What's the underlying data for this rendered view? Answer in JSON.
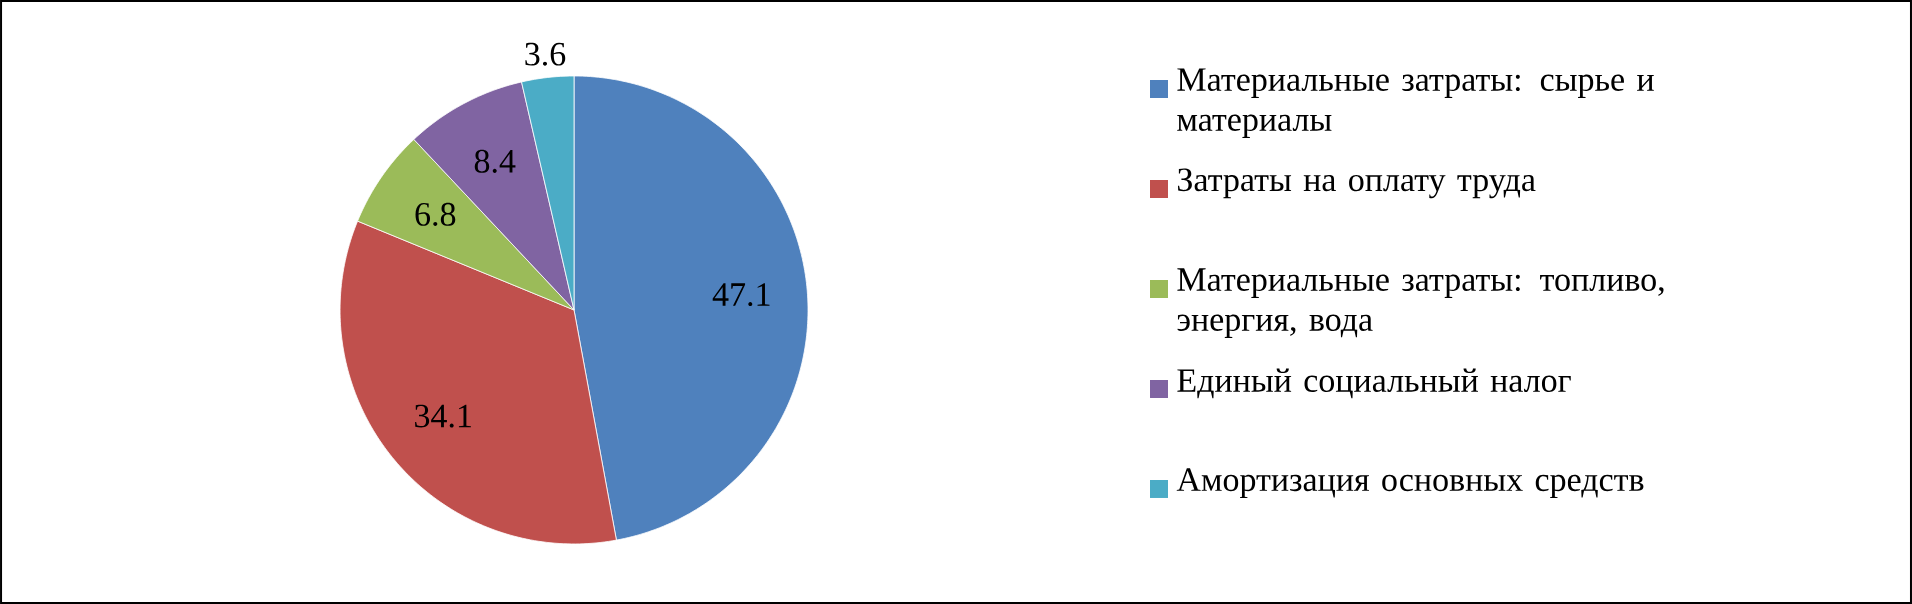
{
  "chart_data": {
    "type": "pie",
    "categories": [
      "Материальные  затраты: сырье и материалы",
      "Затраты на оплату труда",
      "Материальные  затраты: топливо,  энергия, вода",
      "Единый социальный налог",
      "Амортизация основных средств"
    ],
    "values": [
      47.1,
      34.1,
      6.8,
      8.4,
      3.6
    ],
    "colors": [
      "#4f81bd",
      "#c0504d",
      "#9bbb59",
      "#8064a2",
      "#4bacc6"
    ],
    "data_labels": true,
    "legend": "right"
  }
}
